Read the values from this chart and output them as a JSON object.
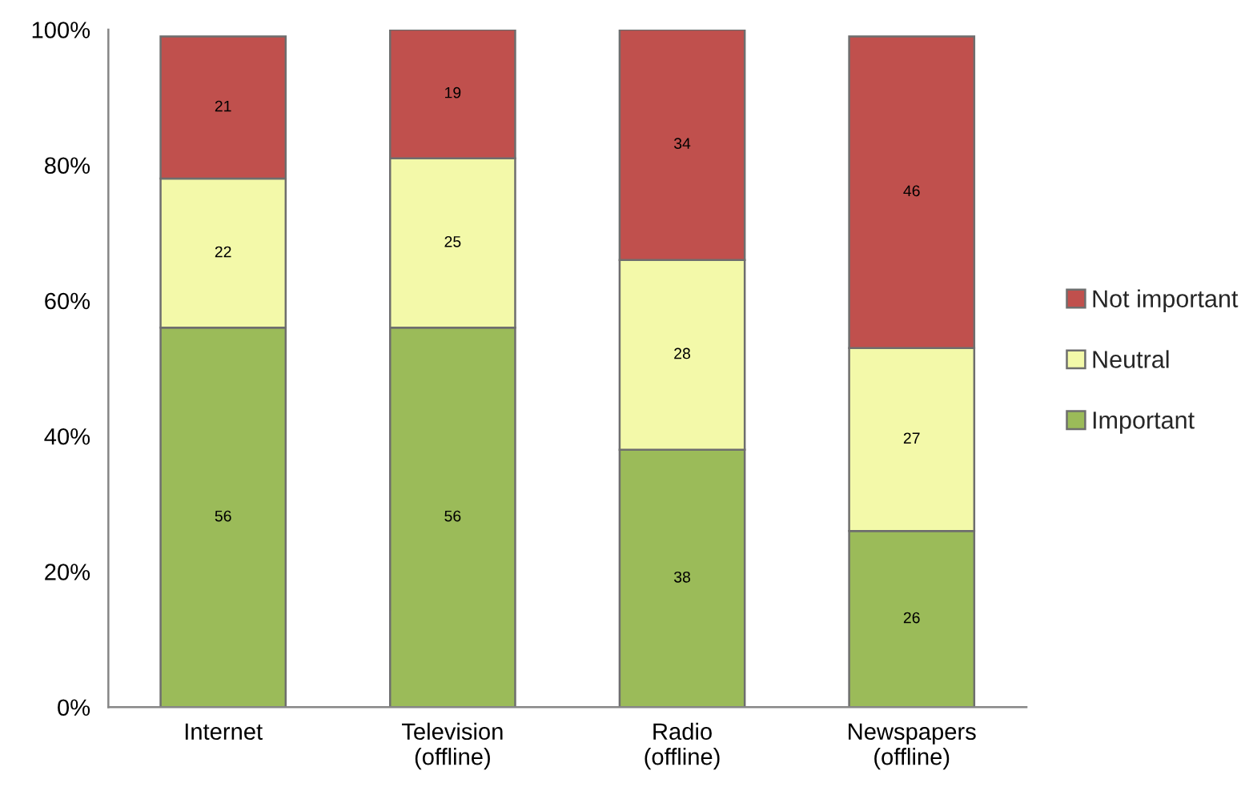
{
  "chart_data": {
    "type": "bar",
    "stacked": true,
    "categories": [
      "Internet",
      "Television\n(offline)",
      "Radio\n(offline)",
      "Newspapers\n(offline)"
    ],
    "series": [
      {
        "name": "Important",
        "color": "#9bbb59",
        "values": [
          56,
          56,
          38,
          26
        ]
      },
      {
        "name": "Neutral",
        "color": "#f3f9a9",
        "values": [
          22,
          25,
          28,
          27
        ]
      },
      {
        "name": "Not important",
        "color": "#c0504d",
        "values": [
          21,
          19,
          34,
          46
        ]
      }
    ],
    "ylim": [
      0,
      100
    ],
    "yticks": [
      {
        "value": 0,
        "label": "0%"
      },
      {
        "value": 20,
        "label": "20%"
      },
      {
        "value": 40,
        "label": "40%"
      },
      {
        "value": 60,
        "label": "60%"
      },
      {
        "value": 80,
        "label": "80%"
      },
      {
        "value": 100,
        "label": "100%"
      }
    ],
    "data_labels": true,
    "legend": "right",
    "grid": false
  }
}
